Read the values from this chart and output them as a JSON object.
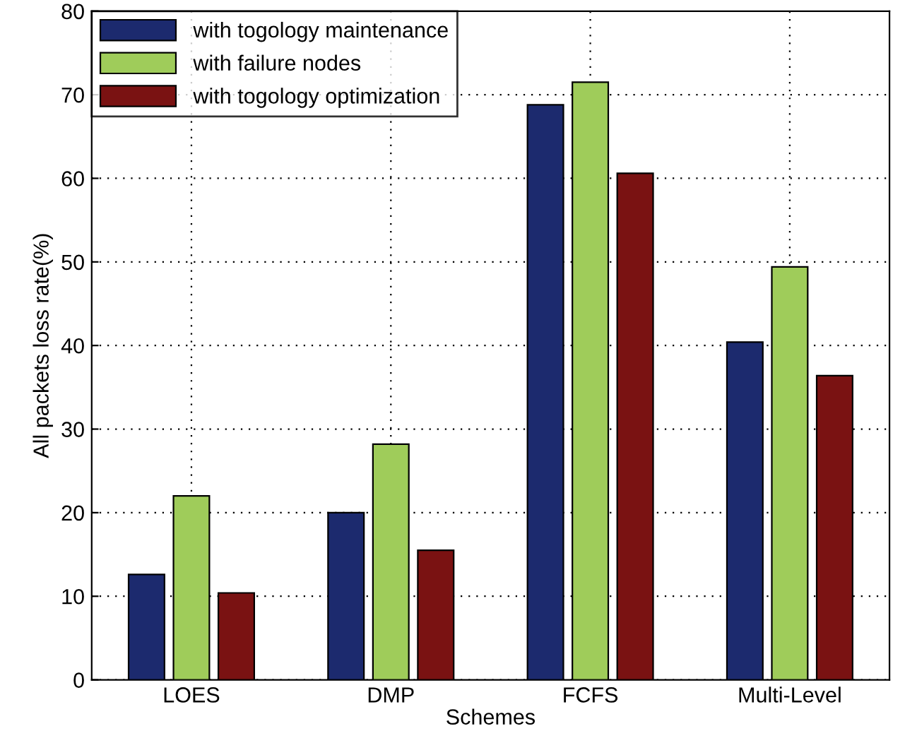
{
  "chart_data": {
    "type": "bar",
    "xlabel": "Schemes",
    "ylabel": "All packets loss rate(%)",
    "categories": [
      "LOES",
      "DMP",
      "FCFS",
      "Multi-Level"
    ],
    "series": [
      {
        "name": "with togology maintenance",
        "color": "#1c2a6e",
        "values": [
          12.6,
          20,
          68.8,
          40.4
        ]
      },
      {
        "name": "with failure nodes",
        "color": "#9fcc5a",
        "values": [
          22,
          28.2,
          71.5,
          49.4
        ]
      },
      {
        "name": "with togology optimization",
        "color": "#7a1212",
        "values": [
          10.4,
          15.5,
          60.6,
          36.4
        ]
      }
    ],
    "ylim": [
      0,
      80
    ],
    "yticks": [
      0,
      10,
      20,
      30,
      40,
      50,
      60,
      70,
      80
    ],
    "grid": true,
    "legend": "top left"
  }
}
